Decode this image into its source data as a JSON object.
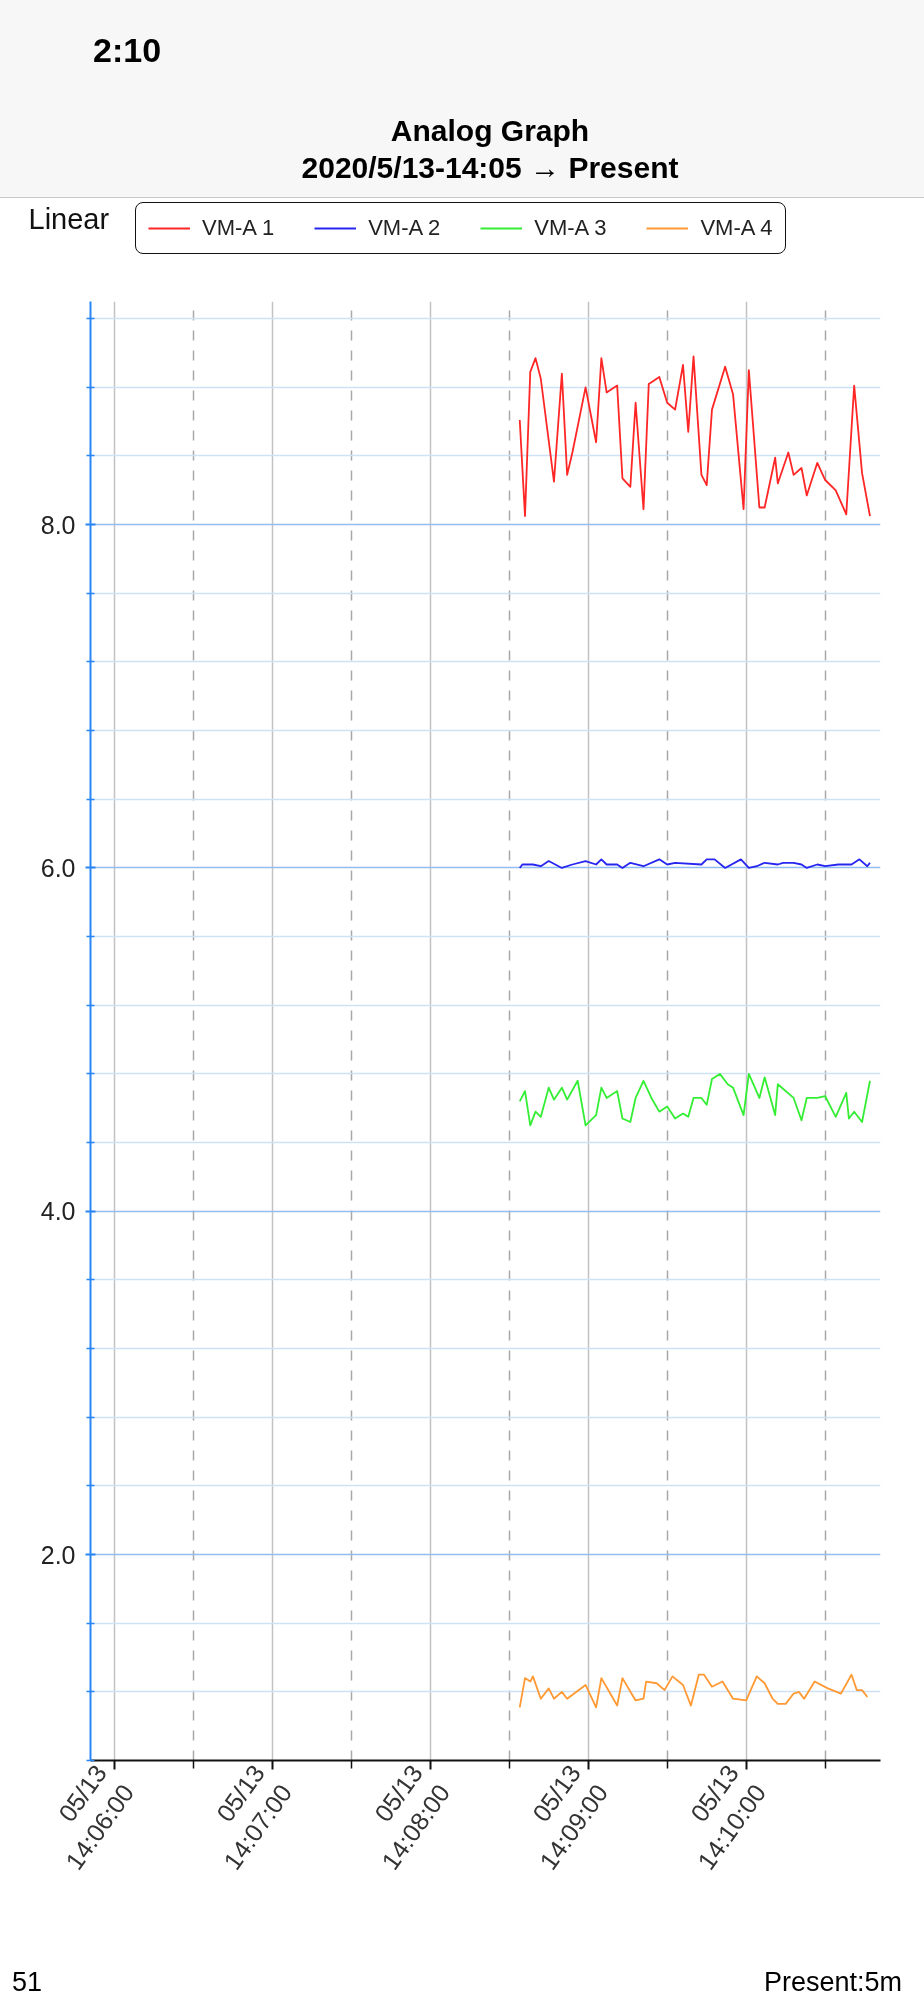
{
  "chart_data": {
    "type": "line",
    "title": "Analog Graph",
    "subtitle": "2020/5/13-14:05 → Present",
    "annotations": [
      "2:10",
      "Linear",
      "51",
      "Present:5m"
    ],
    "xlim": [
      "2020-05-13T14:05:51",
      "2020-05-13T14:10:51"
    ],
    "xticks": [
      {
        "value": "2020-05-13T14:06:00",
        "label": "05/13\n14:06:00"
      },
      {
        "value": "2020-05-13T14:06:30",
        "label": null
      },
      {
        "value": "2020-05-13T14:07:00",
        "label": "05/13\n14:07:00"
      },
      {
        "value": "2020-05-13T14:07:30",
        "label": null
      },
      {
        "value": "2020-05-13T14:08:00",
        "label": "05/13\n14:08:00"
      },
      {
        "value": "2020-05-13T14:08:30",
        "label": null
      },
      {
        "value": "2020-05-13T14:09:00",
        "label": "05/13\n14:09:00"
      },
      {
        "value": "2020-05-13T14:09:30",
        "label": null
      },
      {
        "value": "2020-05-13T14:10:00",
        "label": "05/13\n14:10:00"
      },
      {
        "value": "2020-05-13T14:10:30",
        "label": null
      }
    ],
    "ylim": [
      0.8,
      9.3
    ],
    "yticks": [
      {
        "value": 0.8,
        "label": null
      },
      {
        "value": 1.2,
        "label": null
      },
      {
        "value": 1.6,
        "label": null
      },
      {
        "value": 2,
        "label": "2.0"
      },
      {
        "value": 2.4,
        "label": null
      },
      {
        "value": 2.8,
        "label": null
      },
      {
        "value": 3.2,
        "label": null
      },
      {
        "value": 3.6,
        "label": null
      },
      {
        "value": 4,
        "label": "4.0"
      },
      {
        "value": 4.4,
        "label": null
      },
      {
        "value": 4.8,
        "label": null
      },
      {
        "value": 5.2,
        "label": null
      },
      {
        "value": 5.6,
        "label": null
      },
      {
        "value": 6,
        "label": "6.0"
      },
      {
        "value": 6.4,
        "label": null
      },
      {
        "value": 6.8,
        "label": null
      },
      {
        "value": 7.2,
        "label": null
      },
      {
        "value": 7.6,
        "label": null
      },
      {
        "value": 8,
        "label": "8.0"
      },
      {
        "value": 8.4,
        "label": null
      },
      {
        "value": 8.8,
        "label": null
      },
      {
        "value": 9.2,
        "label": null
      }
    ],
    "grid": true,
    "legend": "top",
    "series": [
      {
        "name": "VM-A 1",
        "color": "#ff2626",
        "x": [
          "2020-05-13T14:08:34",
          "2020-05-13T14:08:36",
          "2020-05-13T14:08:38",
          "2020-05-13T14:08:40",
          "2020-05-13T14:08:42",
          "2020-05-13T14:08:47",
          "2020-05-13T14:08:50",
          "2020-05-13T14:08:52",
          "2020-05-13T14:08:54",
          "2020-05-13T14:08:59",
          "2020-05-13T14:09:03",
          "2020-05-13T14:09:05",
          "2020-05-13T14:09:07",
          "2020-05-13T14:09:11",
          "2020-05-13T14:09:13",
          "2020-05-13T14:09:16",
          "2020-05-13T14:09:18",
          "2020-05-13T14:09:21",
          "2020-05-13T14:09:23",
          "2020-05-13T14:09:27",
          "2020-05-13T14:09:30",
          "2020-05-13T14:09:33",
          "2020-05-13T14:09:36",
          "2020-05-13T14:09:38",
          "2020-05-13T14:09:40",
          "2020-05-13T14:09:43",
          "2020-05-13T14:09:45",
          "2020-05-13T14:09:47",
          "2020-05-13T14:09:52",
          "2020-05-13T14:09:55",
          "2020-05-13T14:09:59",
          "2020-05-13T14:10:01",
          "2020-05-13T14:10:05",
          "2020-05-13T14:10:07",
          "2020-05-13T14:10:11",
          "2020-05-13T14:10:12",
          "2020-05-13T14:10:16",
          "2020-05-13T14:10:18",
          "2020-05-13T14:10:21",
          "2020-05-13T14:10:23",
          "2020-05-13T14:10:27",
          "2020-05-13T14:10:30",
          "2020-05-13T14:10:34",
          "2020-05-13T14:10:38",
          "2020-05-13T14:10:41",
          "2020-05-13T14:10:44",
          "2020-05-13T14:10:47"
        ],
        "values": [
          8.61,
          8.05,
          8.89,
          8.97,
          8.85,
          8.25,
          8.88,
          8.29,
          8.42,
          8.8,
          8.48,
          8.97,
          8.77,
          8.81,
          8.27,
          8.22,
          8.71,
          8.09,
          8.82,
          8.86,
          8.71,
          8.67,
          8.93,
          8.54,
          8.98,
          8.29,
          8.23,
          8.67,
          8.92,
          8.76,
          8.09,
          8.9,
          8.1,
          8.1,
          8.39,
          8.24,
          8.42,
          8.29,
          8.33,
          8.17,
          8.36,
          8.26,
          8.2,
          8.06,
          8.81,
          8.3,
          8.05
        ]
      },
      {
        "name": "VM-A 2",
        "color": "#2626f0",
        "x": [
          "2020-05-13T14:08:34",
          "2020-05-13T14:08:35",
          "2020-05-13T14:08:39",
          "2020-05-13T14:08:42",
          "2020-05-13T14:08:45",
          "2020-05-13T14:08:50",
          "2020-05-13T14:08:54",
          "2020-05-13T14:08:59",
          "2020-05-13T14:09:03",
          "2020-05-13T14:09:05",
          "2020-05-13T14:09:07",
          "2020-05-13T14:09:11",
          "2020-05-13T14:09:13",
          "2020-05-13T14:09:16",
          "2020-05-13T14:09:21",
          "2020-05-13T14:09:27",
          "2020-05-13T14:09:30",
          "2020-05-13T14:09:33",
          "2020-05-13T14:09:43",
          "2020-05-13T14:09:45",
          "2020-05-13T14:09:48",
          "2020-05-13T14:09:52",
          "2020-05-13T14:09:58",
          "2020-05-13T14:10:01",
          "2020-05-13T14:10:04",
          "2020-05-13T14:10:07",
          "2020-05-13T14:10:12",
          "2020-05-13T14:10:14",
          "2020-05-13T14:10:18",
          "2020-05-13T14:10:21",
          "2020-05-13T14:10:23",
          "2020-05-13T14:10:27",
          "2020-05-13T14:10:30",
          "2020-05-13T14:10:35",
          "2020-05-13T14:10:40",
          "2020-05-13T14:10:43",
          "2020-05-13T14:10:46",
          "2020-05-13T14:10:47"
        ],
        "values": [
          6.0,
          6.02,
          6.02,
          6.01,
          6.04,
          6.0,
          6.02,
          6.04,
          6.02,
          6.05,
          6.02,
          6.02,
          6.0,
          6.03,
          6.01,
          6.05,
          6.02,
          6.03,
          6.02,
          6.05,
          6.05,
          6.0,
          6.05,
          6.0,
          6.01,
          6.03,
          6.02,
          6.03,
          6.03,
          6.02,
          6.0,
          6.02,
          6.01,
          6.02,
          6.02,
          6.05,
          6.01,
          6.03
        ]
      },
      {
        "name": "VM-A 3",
        "color": "#33ee33",
        "x": [
          "2020-05-13T14:08:34",
          "2020-05-13T14:08:36",
          "2020-05-13T14:08:38",
          "2020-05-13T14:08:40",
          "2020-05-13T14:08:42",
          "2020-05-13T14:08:45",
          "2020-05-13T14:08:47",
          "2020-05-13T14:08:50",
          "2020-05-13T14:08:52",
          "2020-05-13T14:08:56",
          "2020-05-13T14:08:59",
          "2020-05-13T14:09:03",
          "2020-05-13T14:09:05",
          "2020-05-13T14:09:07",
          "2020-05-13T14:09:11",
          "2020-05-13T14:09:13",
          "2020-05-13T14:09:16",
          "2020-05-13T14:09:18",
          "2020-05-13T14:09:21",
          "2020-05-13T14:09:24",
          "2020-05-13T14:09:27",
          "2020-05-13T14:09:30",
          "2020-05-13T14:09:33",
          "2020-05-13T14:09:36",
          "2020-05-13T14:09:38",
          "2020-05-13T14:09:40",
          "2020-05-13T14:09:43",
          "2020-05-13T14:09:45",
          "2020-05-13T14:09:47",
          "2020-05-13T14:09:50",
          "2020-05-13T14:09:53",
          "2020-05-13T14:09:55",
          "2020-05-13T14:09:59",
          "2020-05-13T14:10:01",
          "2020-05-13T14:10:05",
          "2020-05-13T14:10:07",
          "2020-05-13T14:10:11",
          "2020-05-13T14:10:12",
          "2020-05-13T14:10:18",
          "2020-05-13T14:10:21",
          "2020-05-13T14:10:23",
          "2020-05-13T14:10:27",
          "2020-05-13T14:10:30",
          "2020-05-13T14:10:34",
          "2020-05-13T14:10:38",
          "2020-05-13T14:10:39",
          "2020-05-13T14:10:41",
          "2020-05-13T14:10:44",
          "2020-05-13T14:10:47"
        ],
        "values": [
          4.64,
          4.7,
          4.5,
          4.58,
          4.55,
          4.72,
          4.65,
          4.72,
          4.65,
          4.76,
          4.5,
          4.56,
          4.72,
          4.66,
          4.7,
          4.54,
          4.52,
          4.66,
          4.76,
          4.66,
          4.58,
          4.61,
          4.54,
          4.57,
          4.55,
          4.66,
          4.66,
          4.62,
          4.77,
          4.8,
          4.74,
          4.72,
          4.56,
          4.8,
          4.66,
          4.78,
          4.56,
          4.74,
          4.66,
          4.53,
          4.66,
          4.66,
          4.67,
          4.55,
          4.69,
          4.54,
          4.58,
          4.52,
          4.76
        ]
      },
      {
        "name": "VM-A 4",
        "color": "#ff9933",
        "x": [
          "2020-05-13T14:08:34",
          "2020-05-13T14:08:36",
          "2020-05-13T14:08:38",
          "2020-05-13T14:08:39",
          "2020-05-13T14:08:42",
          "2020-05-13T14:08:45",
          "2020-05-13T14:08:47",
          "2020-05-13T14:08:50",
          "2020-05-13T14:08:52",
          "2020-05-13T14:08:59",
          "2020-05-13T14:09:03",
          "2020-05-13T14:09:05",
          "2020-05-13T14:09:11",
          "2020-05-13T14:09:13",
          "2020-05-13T14:09:18",
          "2020-05-13T14:09:21",
          "2020-05-13T14:09:22",
          "2020-05-13T14:09:26",
          "2020-05-13T14:09:29",
          "2020-05-13T14:09:32",
          "2020-05-13T14:09:36",
          "2020-05-13T14:09:39",
          "2020-05-13T14:09:42",
          "2020-05-13T14:09:44",
          "2020-05-13T14:09:47",
          "2020-05-13T14:09:51",
          "2020-05-13T14:09:55",
          "2020-05-13T14:10:00",
          "2020-05-13T14:10:04",
          "2020-05-13T14:10:07",
          "2020-05-13T14:10:10",
          "2020-05-13T14:10:12",
          "2020-05-13T14:10:15",
          "2020-05-13T14:10:18",
          "2020-05-13T14:10:20",
          "2020-05-13T14:10:22",
          "2020-05-13T14:10:26",
          "2020-05-13T14:10:31",
          "2020-05-13T14:10:36",
          "2020-05-13T14:10:40",
          "2020-05-13T14:10:42",
          "2020-05-13T14:10:44",
          "2020-05-13T14:10:46"
        ],
        "values": [
          1.11,
          1.28,
          1.26,
          1.29,
          1.16,
          1.22,
          1.16,
          1.2,
          1.16,
          1.24,
          1.11,
          1.28,
          1.12,
          1.28,
          1.15,
          1.16,
          1.26,
          1.25,
          1.21,
          1.29,
          1.24,
          1.12,
          1.3,
          1.3,
          1.23,
          1.26,
          1.16,
          1.15,
          1.29,
          1.25,
          1.16,
          1.13,
          1.13,
          1.19,
          1.2,
          1.16,
          1.26,
          1.22,
          1.19,
          1.3,
          1.21,
          1.21,
          1.17
        ]
      }
    ]
  }
}
